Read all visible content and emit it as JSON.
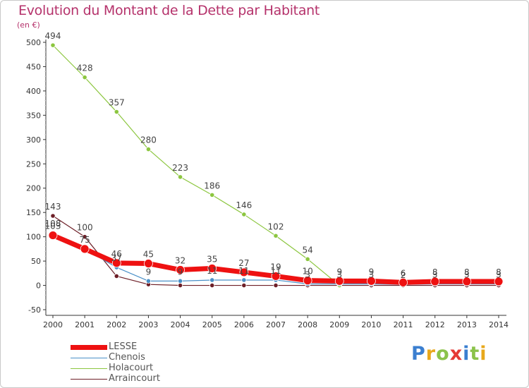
{
  "header": {
    "title": "Evolution du Montant de la Dette par Habitant",
    "subtitle": "(en €)"
  },
  "logo": {
    "letters": [
      "P",
      "r",
      "o",
      "x",
      "i",
      "t",
      "i"
    ],
    "colors": [
      "#3b7fd0",
      "#e8a81c",
      "#8bc34a",
      "#e53935",
      "#3b7fd0",
      "#8bc34a",
      "#e8a81c"
    ]
  },
  "chart_data": {
    "type": "line",
    "title": "Evolution du Montant de la Dette par Habitant",
    "ylabel": "(en €)",
    "xlabel": "",
    "ylim": [
      -50,
      500
    ],
    "yticks": [
      -50,
      0,
      50,
      100,
      150,
      200,
      250,
      300,
      350,
      400,
      450,
      500
    ],
    "x": [
      "2000",
      "2001",
      "2002",
      "2003",
      "2004",
      "2005",
      "2006",
      "2007",
      "2008",
      "2009",
      "2010",
      "2011",
      "2012",
      "2013",
      "2014"
    ],
    "grid": false,
    "legend_position": "bottom-left",
    "series": [
      {
        "name": "LESSE",
        "color": "#ee1111",
        "values": [
          103,
          75,
          46,
          45,
          32,
          35,
          27,
          19,
          10,
          9,
          9,
          6,
          8,
          8,
          8
        ],
        "labels": [
          "103",
          "75",
          "46",
          "45",
          "32",
          "35",
          "27",
          "19",
          "10",
          "9",
          "9",
          "6",
          "8",
          "8",
          "8"
        ]
      },
      {
        "name": "Chenois",
        "color": "#4a90c8",
        "values": [
          108,
          75,
          37,
          9,
          9,
          11,
          11,
          11,
          3,
          3,
          3,
          2,
          3,
          3,
          3
        ],
        "labels": [
          "108",
          "",
          "37",
          "9",
          "9",
          "11",
          "11",
          "11",
          "3",
          "3",
          "3",
          "2",
          "3",
          "3",
          "3"
        ]
      },
      {
        "name": "Holacourt",
        "color": "#8cc63f",
        "values": [
          494,
          428,
          357,
          280,
          223,
          186,
          146,
          102,
          54,
          0,
          null,
          null,
          null,
          null,
          null
        ],
        "labels": [
          "494",
          "428",
          "357",
          "280",
          "223",
          "186",
          "146",
          "102",
          "54",
          "",
          "",
          "",
          "",
          "",
          ""
        ]
      },
      {
        "name": "Arraincourt",
        "color": "#6d1f27",
        "values": [
          143,
          100,
          19,
          2,
          0,
          0,
          0,
          0,
          0,
          0,
          0,
          0,
          0,
          0,
          0
        ],
        "labels": [
          "143",
          "100",
          "",
          "",
          "",
          "",
          "",
          "",
          "",
          "",
          "",
          "",
          "",
          "",
          ""
        ]
      }
    ]
  }
}
